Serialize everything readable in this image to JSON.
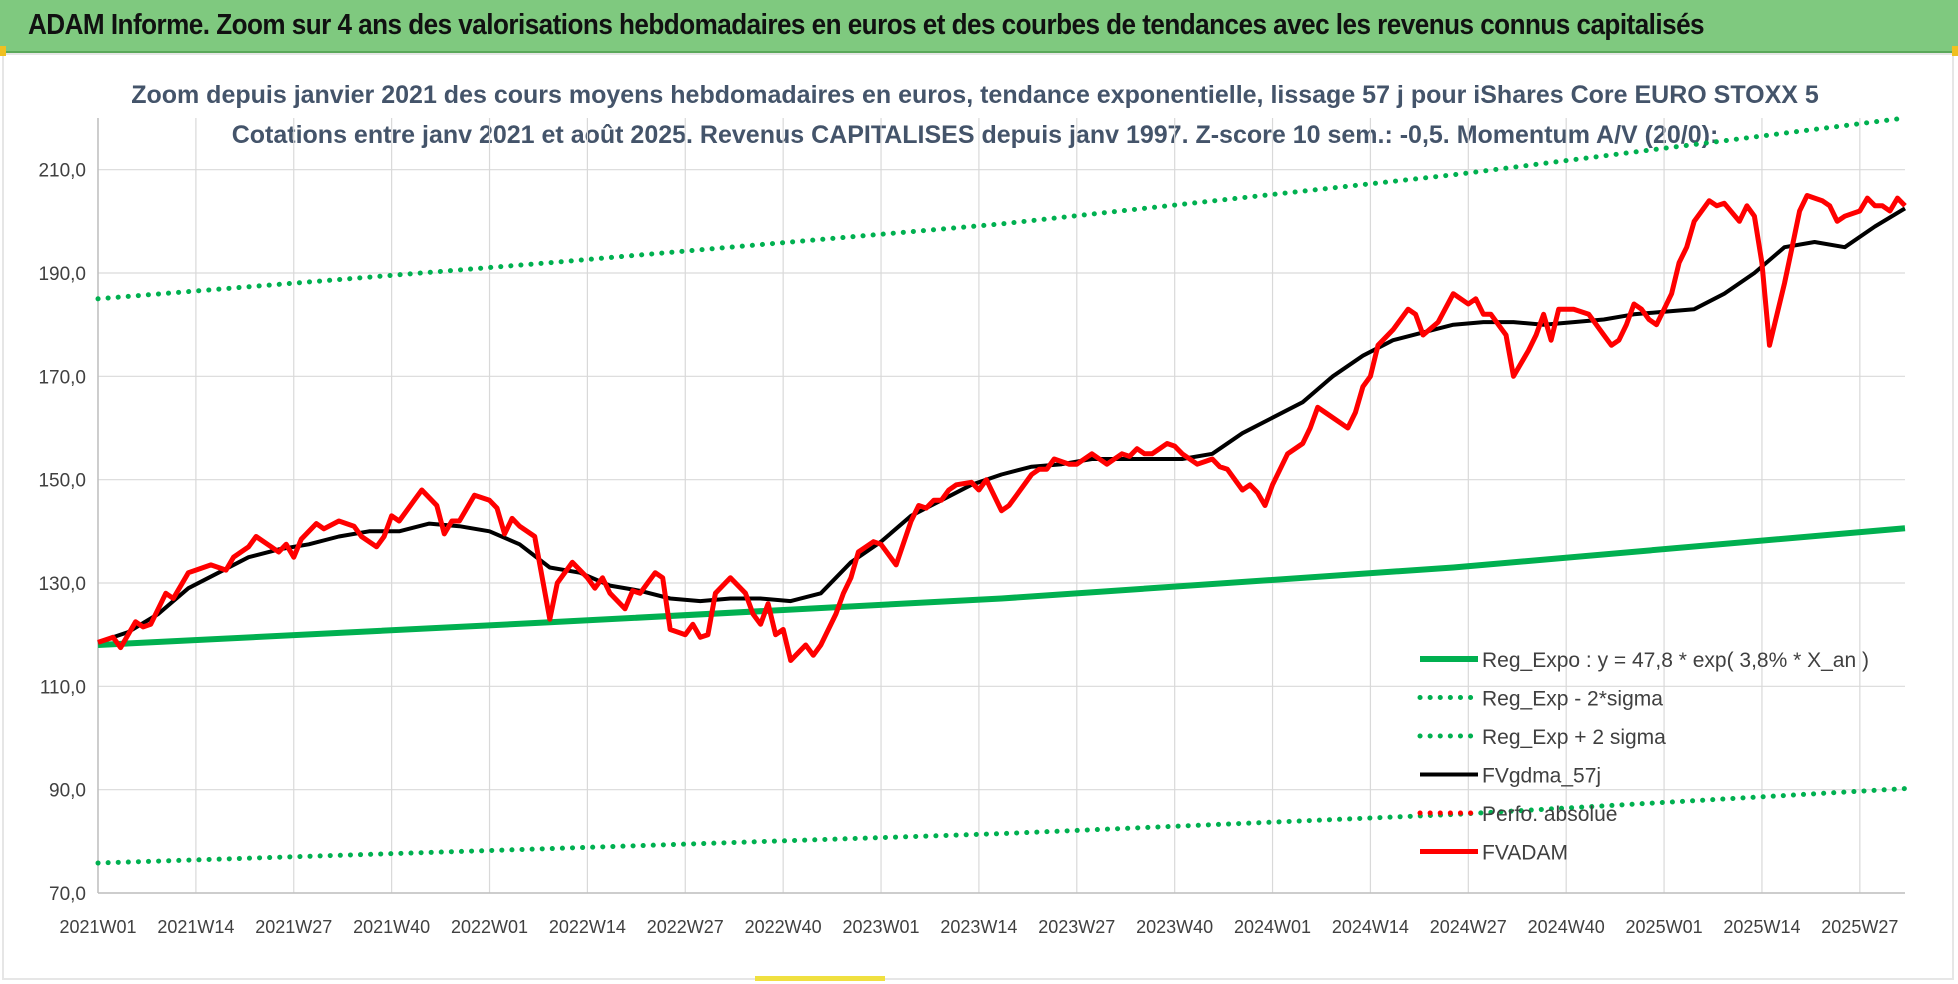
{
  "header": {
    "title": "ADAM Informe. Zoom sur 4 ans des valorisations hebdomadaires en euros et des courbes de tendances avec les revenus connus capitalisés"
  },
  "chart_data": {
    "type": "line",
    "title_line1": "Zoom depuis janvier 2021 des cours moyens hebdomadaires en euros, tendance exponentielle, lissage 57 j pour iShares Core EURO STOXX 5",
    "title_line2": "Cotations entre janv 2021 et août 2025. Revenus CAPITALISES depuis janv 1997. Z-score 10 sem.: -0,5. Momentum A/V (20/0):",
    "ylim": [
      70,
      220
    ],
    "yticks": [
      "70,0",
      "90,0",
      "110,0",
      "130,0",
      "150,0",
      "170,0",
      "190,0",
      "210,0"
    ],
    "xticks": [
      "2021W01",
      "2021W14",
      "2021W27",
      "2021W40",
      "2022W01",
      "2022W14",
      "2022W27",
      "2022W40",
      "2023W01",
      "2023W14",
      "2023W27",
      "2023W40",
      "2024W01",
      "2024W14",
      "2024W27",
      "2024W40",
      "2025W01",
      "2025W14",
      "2025W27"
    ],
    "x_range_weeks": [
      0,
      240
    ],
    "grid": true,
    "legend_position": "bottom-right",
    "colors": {
      "green": "#00b050",
      "black": "#000000",
      "red": "#ff0000"
    },
    "series": [
      {
        "name": "Reg_Expo : y = 47,8 * exp( 3,8% *  X_an )",
        "style": "solid",
        "color": "#00b050",
        "x": [
          0,
          60,
          120,
          180,
          240
        ],
        "values": [
          118.0,
          122.4,
          127.0,
          133.0,
          140.6
        ]
      },
      {
        "name": "Reg_Exp - 2*sigma",
        "style": "dotted",
        "color": "#00b050",
        "x": [
          0,
          60,
          120,
          180,
          240
        ],
        "values": [
          75.8,
          78.6,
          81.5,
          85.2,
          90.2
        ]
      },
      {
        "name": "Reg_Exp + 2 sigma",
        "style": "dotted",
        "color": "#00b050",
        "x": [
          0,
          60,
          120,
          180,
          240
        ],
        "values": [
          185.0,
          192.0,
          199.5,
          209.0,
          220.0
        ]
      },
      {
        "name": "FVgdma_57j",
        "style": "solid",
        "color": "#000000",
        "x": [
          0,
          4,
          8,
          12,
          16,
          20,
          24,
          28,
          32,
          36,
          40,
          44,
          48,
          52,
          56,
          60,
          64,
          68,
          72,
          76,
          80,
          84,
          88,
          92,
          96,
          100,
          104,
          108,
          112,
          116,
          120,
          124,
          128,
          132,
          136,
          140,
          144,
          148,
          152,
          156,
          160,
          164,
          168,
          172,
          176,
          180,
          184,
          188,
          192,
          196,
          200,
          204,
          208,
          212,
          216,
          220,
          224,
          228,
          232,
          236,
          240
        ],
        "values": [
          118.5,
          120.5,
          124.0,
          129.0,
          132.0,
          135.0,
          136.5,
          137.5,
          139.0,
          140.0,
          140.0,
          141.5,
          141.0,
          140.0,
          137.5,
          133.0,
          132.0,
          129.5,
          128.5,
          127.0,
          126.5,
          127.0,
          127.0,
          126.5,
          128.0,
          134.0,
          138.0,
          143.0,
          146.0,
          149.0,
          151.0,
          152.5,
          153.0,
          154.0,
          154.0,
          154.0,
          154.0,
          155.0,
          159.0,
          162.0,
          165.0,
          170.0,
          174.0,
          177.0,
          178.5,
          180.0,
          180.5,
          180.5,
          180.0,
          180.5,
          181.0,
          182.0,
          182.5,
          183.0,
          186.0,
          190.0,
          195.0,
          196.0,
          195.0,
          199.0,
          202.5
        ]
      },
      {
        "name": "Perfo. absolue",
        "style": "dotted",
        "color": "#ff0000",
        "x": [],
        "values": []
      },
      {
        "name": "FVADAM",
        "style": "solid",
        "color": "#ff0000",
        "x": [
          0,
          2,
          3,
          5,
          6,
          7,
          9,
          10,
          12,
          13,
          14,
          15,
          16,
          17,
          18,
          20,
          21,
          23,
          24,
          25,
          26,
          27,
          29,
          30,
          32,
          34,
          35,
          37,
          38,
          39,
          40,
          42,
          43,
          45,
          46,
          47,
          48,
          50,
          52,
          53,
          54,
          55,
          56,
          58,
          60,
          61,
          62,
          63,
          65,
          66,
          67,
          68,
          70,
          71,
          72,
          73,
          74,
          75,
          76,
          78,
          79,
          80,
          81,
          82,
          84,
          86,
          87,
          88,
          89,
          90,
          91,
          92,
          94,
          95,
          96,
          98,
          99,
          100,
          101,
          102,
          103,
          104,
          106,
          108,
          109,
          110,
          111,
          112,
          113,
          114,
          116,
          117,
          118,
          120,
          121,
          122,
          124,
          125,
          126,
          127,
          128,
          129,
          130,
          131,
          132,
          133,
          134,
          135,
          136,
          137,
          138,
          139,
          140,
          141,
          142,
          143,
          144,
          145,
          146,
          147,
          148,
          149,
          150,
          152,
          153,
          154,
          155,
          156,
          158,
          160,
          161,
          162,
          163,
          165,
          166,
          167,
          168,
          169,
          170,
          172,
          174,
          175,
          176,
          178,
          180,
          182,
          183,
          184,
          185,
          186,
          187,
          188,
          190,
          191,
          192,
          193,
          194,
          196,
          198,
          199,
          200,
          201,
          202,
          203,
          204,
          205,
          206,
          207,
          208,
          209,
          210,
          211,
          212,
          214,
          215,
          216,
          218,
          219,
          220,
          221,
          222,
          223,
          224,
          225,
          226,
          227,
          228,
          229,
          230,
          231,
          232,
          234,
          235,
          236,
          237,
          238,
          239,
          240
        ],
        "values": [
          118.5,
          119.5,
          117.5,
          122.5,
          121.5,
          122.0,
          128.0,
          127.0,
          132.0,
          132.5,
          133.0,
          133.5,
          133.0,
          132.5,
          135.0,
          137.0,
          139.0,
          137.0,
          136.0,
          137.5,
          135.0,
          138.5,
          141.5,
          140.5,
          142.0,
          141.0,
          139.0,
          137.0,
          139.0,
          143.0,
          142.0,
          146.0,
          148.0,
          145.0,
          139.5,
          142.0,
          142.0,
          147.0,
          146.0,
          144.5,
          139.5,
          142.5,
          141.0,
          139.0,
          123.0,
          130.0,
          132.0,
          134.0,
          131.0,
          129.0,
          131.0,
          128.0,
          125.0,
          128.5,
          128.0,
          130.0,
          132.0,
          131.0,
          121.0,
          120.0,
          122.0,
          119.5,
          120.0,
          128.0,
          131.0,
          128.0,
          124.0,
          122.0,
          126.0,
          120.0,
          121.0,
          115.0,
          118.0,
          116.0,
          118.0,
          124.0,
          128.0,
          131.0,
          136.0,
          137.0,
          138.0,
          137.5,
          133.5,
          142.0,
          145.0,
          144.5,
          146.0,
          146.0,
          148.0,
          149.0,
          149.5,
          148.0,
          150.0,
          144.0,
          145.0,
          147.0,
          151.0,
          152.0,
          152.0,
          154.0,
          153.5,
          153.0,
          153.0,
          154.0,
          155.0,
          154.0,
          153.0,
          154.0,
          155.0,
          154.5,
          156.0,
          155.0,
          155.0,
          156.0,
          157.0,
          156.5,
          155.0,
          154.0,
          153.0,
          153.5,
          154.0,
          152.5,
          152.0,
          148.0,
          149.0,
          147.5,
          145.0,
          149.0,
          155.0,
          157.0,
          160.0,
          164.0,
          163.0,
          161.0,
          160.0,
          163.0,
          168.0,
          170.0,
          176.0,
          179.0,
          183.0,
          182.0,
          178.0,
          180.5,
          186.0,
          184.0,
          185.0,
          182.0,
          182.0,
          180.0,
          178.0,
          170.0,
          175.0,
          178.0,
          182.0,
          177.0,
          183.0,
          183.0,
          182.0,
          180.0,
          178.0,
          176.0,
          177.0,
          180.0,
          184.0,
          183.0,
          181.0,
          180.0,
          183.0,
          186.0,
          192.0,
          195.0,
          200.0,
          204.0,
          203.0,
          203.5,
          200.0,
          203.0,
          201.0,
          192.0,
          176.0,
          182.0,
          188.0,
          195.0,
          202.0,
          205.0,
          204.5,
          204.0,
          203.0,
          200.0,
          201.0,
          202.0,
          204.5,
          203.0,
          203.0,
          202.0,
          204.5,
          203.0
        ]
      }
    ]
  }
}
